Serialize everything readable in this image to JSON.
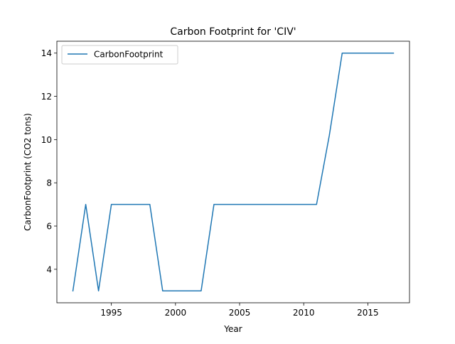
{
  "chart_data": {
    "type": "line",
    "title": "Carbon Footprint for 'CIV'",
    "xlabel": "Year",
    "ylabel": "CarbonFootprint (CO2 tons)",
    "xlim": [
      1990.75,
      2018.25
    ],
    "ylim": [
      2.45,
      14.55
    ],
    "xticks": [
      1995,
      2000,
      2005,
      2010,
      2015
    ],
    "yticks": [
      4,
      6,
      8,
      10,
      12,
      14
    ],
    "grid": false,
    "legend_position": "top-left",
    "series": [
      {
        "name": "CarbonFootprint",
        "color": "#1f77b4",
        "x": [
          1992,
          1993,
          1994,
          1995,
          1996,
          1997,
          1998,
          1999,
          2000,
          2001,
          2002,
          2003,
          2004,
          2005,
          2006,
          2007,
          2008,
          2009,
          2010,
          2011,
          2012,
          2013,
          2014,
          2015,
          2016,
          2017
        ],
        "y": [
          3,
          7,
          3,
          7,
          7,
          7,
          7,
          3,
          3,
          3,
          3,
          7,
          7,
          7,
          7,
          7,
          7,
          7,
          7,
          7,
          10.2,
          14,
          14,
          14,
          14,
          14
        ]
      }
    ]
  }
}
